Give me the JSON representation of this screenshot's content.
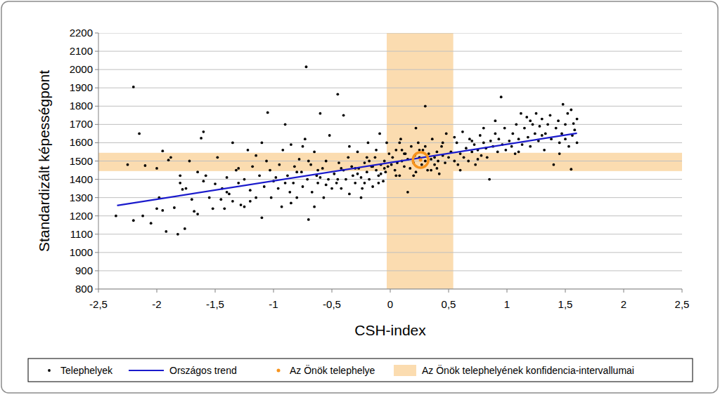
{
  "chart_data": {
    "type": "scatter",
    "x_label": "CSH-index",
    "y_label": "Standardizált képességpont",
    "xlim": [
      -2.5,
      2.5
    ],
    "ylim": [
      800,
      2200
    ],
    "xticks": [
      {
        "value": -2.5,
        "label": "-2,5"
      },
      -2,
      {
        "value": -1.5,
        "label": "-1,5"
      },
      -1,
      {
        "value": -0.5,
        "label": "-0,5"
      },
      0,
      {
        "value": 0.5,
        "label": "0,5"
      },
      1,
      {
        "value": 1.5,
        "label": "1,5"
      },
      2,
      {
        "value": 2.5,
        "label": "2,5"
      }
    ],
    "yticks": [
      800,
      900,
      1000,
      1100,
      1200,
      1300,
      1400,
      1500,
      1600,
      1700,
      1800,
      1900,
      2000,
      2100,
      2200
    ],
    "grid": true,
    "legend": "bottom",
    "series": [
      {
        "name": "Telephelyek",
        "type": "scatter",
        "color": "#000000",
        "marker": "circle",
        "x": [
          -2.35,
          -2.2,
          -2.15,
          -2.25,
          -2.1,
          -2.2,
          -2.05,
          -2.0,
          -1.95,
          -1.92,
          -1.9,
          -1.95,
          -1.88,
          -1.85,
          -1.82,
          -1.8,
          -1.78,
          -1.75,
          -1.72,
          -1.7,
          -1.68,
          -1.65,
          -1.62,
          -1.6,
          -1.58,
          -1.55,
          -1.52,
          -1.5,
          -2.0,
          -1.98,
          -2.12,
          -1.8,
          -1.76,
          -1.6,
          -1.65,
          -1.48,
          -1.45,
          -1.44,
          -1.42,
          -1.4,
          -1.38,
          -1.35,
          -1.32,
          -1.3,
          -1.28,
          -1.25,
          -1.22,
          -1.2,
          -1.18,
          -1.15,
          -1.12,
          -1.1,
          -1.08,
          -1.06,
          -1.05,
          -1.03,
          -1.02,
          -1.0,
          -1.35,
          -1.25,
          -1.15,
          -1.4,
          -1.3,
          -1.2,
          -1.1,
          -0.98,
          -0.96,
          -0.95,
          -0.93,
          -0.92,
          -0.9,
          -0.88,
          -0.86,
          -0.85,
          -0.83,
          -0.82,
          -0.8,
          -0.78,
          -0.76,
          -0.75,
          -0.73,
          -0.72,
          -0.71,
          -0.7,
          -0.68,
          -0.67,
          -0.65,
          -0.63,
          -0.62,
          -0.6,
          -0.58,
          -0.57,
          -0.55,
          -0.53,
          -0.52,
          -0.5,
          -0.9,
          -0.8,
          -0.7,
          -0.6,
          -0.55,
          -0.65,
          -0.85,
          -0.75,
          -0.62,
          -0.48,
          -0.46,
          -0.45,
          -0.44,
          -0.42,
          -0.4,
          -0.4,
          -0.38,
          -0.36,
          -0.35,
          -0.33,
          -0.32,
          -0.3,
          -0.28,
          -0.27,
          -0.25,
          -0.24,
          -0.22,
          -0.2,
          -0.19,
          -0.18,
          -0.16,
          -0.15,
          -0.13,
          -0.12,
          -0.1,
          -0.09,
          -0.08,
          -0.06,
          -0.05,
          -0.04,
          -0.02,
          -0.01,
          -0.35,
          -0.3,
          -0.2,
          -0.15,
          -0.1,
          -0.05,
          -0.25,
          -0.45,
          -0.28,
          -0.18,
          -0.08,
          -0.12,
          -0.42,
          -0.22,
          -0.03,
          0.01,
          0.02,
          0.04,
          0.05,
          0.06,
          0.08,
          0.09,
          0.1,
          0.12,
          0.13,
          0.15,
          0.15,
          0.17,
          0.18,
          0.2,
          0.21,
          0.22,
          0.24,
          0.25,
          0.27,
          0.28,
          0.3,
          0.3,
          0.32,
          0.33,
          0.35,
          0.36,
          0.38,
          0.4,
          0.41,
          0.42,
          0.44,
          0.45,
          0.47,
          0.48,
          0.5,
          0.1,
          0.2,
          0.3,
          0.4,
          0.05,
          0.25,
          0.35,
          0.45,
          0.12,
          0.38,
          0.22,
          0.08,
          0.52,
          0.55,
          0.57,
          0.58,
          0.6,
          0.62,
          0.63,
          0.65,
          0.67,
          0.68,
          0.7,
          0.72,
          0.73,
          0.75,
          0.77,
          0.78,
          0.8,
          0.82,
          0.83,
          0.85,
          0.86,
          0.88,
          0.9,
          0.92,
          0.93,
          0.95,
          0.96,
          0.98,
          0.99,
          0.6,
          0.7,
          0.8,
          0.9,
          0.75,
          0.55,
          1.02,
          1.04,
          1.05,
          1.07,
          1.08,
          1.1,
          1.12,
          1.13,
          1.15,
          1.17,
          1.18,
          1.2,
          1.22,
          1.24,
          1.25,
          1.27,
          1.28,
          1.3,
          1.32,
          1.33,
          1.35,
          1.37,
          1.38,
          1.4,
          1.42,
          1.44,
          1.45,
          1.47,
          1.48,
          1.5,
          1.52,
          1.53,
          1.55,
          1.55,
          1.56,
          1.57,
          1.58,
          1.6,
          1.6,
          1.1,
          1.2,
          1.3,
          1.45,
          1.5
        ],
        "values": [
          1200,
          1905,
          1650,
          1480,
          1475,
          1175,
          1160,
          1240,
          1230,
          1115,
          1505,
          1555,
          1520,
          1245,
          1100,
          1380,
          1345,
          1350,
          1500,
          1290,
          1225,
          1210,
          1625,
          1660,
          1420,
          1300,
          1240,
          1375,
          1460,
          1300,
          1200,
          1420,
          1130,
          1390,
          1440,
          1520,
          1290,
          1350,
          1240,
          1410,
          1320,
          1280,
          1450,
          1380,
          1260,
          1400,
          1560,
          1340,
          1470,
          1300,
          1420,
          1190,
          1360,
          1500,
          1765,
          1450,
          1300,
          1390,
          1600,
          1250,
          1530,
          1330,
          1460,
          1280,
          1600,
          1410,
          1350,
          1480,
          1250,
          1560,
          1700,
          1420,
          1330,
          1590,
          1380,
          1470,
          1300,
          1510,
          1440,
          1360,
          1620,
          2015,
          1400,
          1180,
          1480,
          1330,
          1550,
          1420,
          1380,
          1760,
          1460,
          1300,
          1500,
          1400,
          1640,
          1350,
          1380,
          1440,
          1500,
          1410,
          1370,
          1250,
          1270,
          1580,
          1450,
          1430,
          1380,
          1865,
          1490,
          1350,
          1750,
          1450,
          1400,
          1520,
          1320,
          1470,
          1420,
          1380,
          1550,
          1460,
          1410,
          1350,
          1490,
          1440,
          1600,
          1400,
          1470,
          1360,
          1520,
          1450,
          1420,
          1650,
          1480,
          1390,
          1500,
          1440,
          1470,
          1540,
          1580,
          1460,
          1520,
          1470,
          1380,
          1460,
          1300,
          1400,
          1430,
          1500,
          1430,
          1560,
          1460,
          1380,
          1600,
          1480,
          1520,
          1450,
          1560,
          1490,
          1420,
          1620,
          1500,
          1470,
          1540,
          1330,
          1510,
          1460,
          1580,
          1490,
          1530,
          1440,
          1600,
          1520,
          1480,
          1560,
          1800,
          1500,
          1450,
          1540,
          1510,
          1620,
          1480,
          1550,
          1500,
          1430,
          1580,
          1530,
          1490,
          1650,
          1520,
          1560,
          1420,
          1580,
          1460,
          1420,
          1560,
          1450,
          1600,
          1540,
          1520,
          1680,
          1600,
          1550,
          1500,
          1600,
          1480,
          1540,
          1660,
          1520,
          1570,
          1500,
          1620,
          1550,
          1590,
          1480,
          1560,
          1640,
          1530,
          1600,
          1570,
          1520,
          1400,
          1610,
          1580,
          1650,
          1550,
          1620,
          1850,
          1590,
          1680,
          1560,
          1450,
          1610,
          1680,
          1720,
          1510,
          1630,
          1610,
          1580,
          1650,
          1540,
          1700,
          1620,
          1760,
          1590,
          1680,
          1740,
          1630,
          1580,
          1700,
          1650,
          1760,
          1610,
          1690,
          1730,
          1560,
          1650,
          1700,
          1750,
          1620,
          1480,
          1680,
          1720,
          1600,
          1650,
          1810,
          1700,
          1760,
          1580,
          1780,
          1455,
          1640,
          1705,
          1670,
          1600,
          1730,
          1550,
          1720,
          1640,
          1540,
          1620
        ]
      },
      {
        "name": "Országos trend",
        "type": "line",
        "color": "#1a1acc",
        "x": [
          -2.34,
          1.6
        ],
        "values": [
          1257,
          1652
        ]
      },
      {
        "name": "Az Önök telephelye",
        "type": "scatter",
        "color": "#f7941d",
        "marker": "ring",
        "x": [
          0.26
        ],
        "values": [
          1506
        ]
      },
      {
        "name": "Az Önök telephelyének konfidencia-intervallumai",
        "type": "band",
        "color": "#fbdcb0",
        "x": [
          -0.03,
          0.54
        ],
        "values": [
          1445,
          1545
        ]
      }
    ]
  }
}
